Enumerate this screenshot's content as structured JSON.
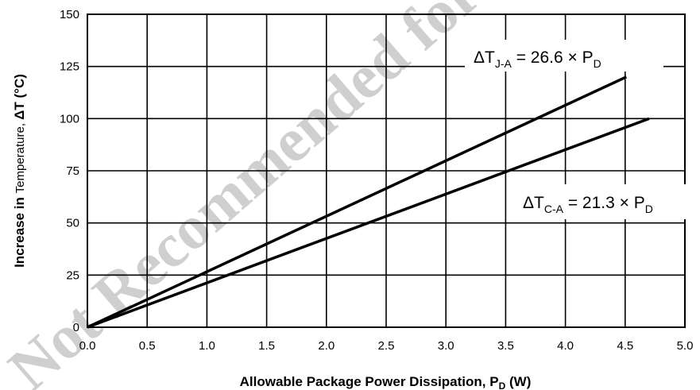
{
  "chart_data": {
    "type": "line",
    "xlabel": {
      "text": "Allowable Package Power Dissipation, P",
      "sub": "D",
      "unit": " (W)"
    },
    "ylabel": {
      "part1": "Increase in ",
      "part2": "Temperature,  ",
      "part3": "ΔT (°C)"
    },
    "xlim": [
      0,
      5
    ],
    "ylim": [
      0,
      150
    ],
    "x_ticks": [
      "0.0",
      "0.5",
      "1.0",
      "1.5",
      "2.0",
      "2.5",
      "3.0",
      "3.5",
      "4.0",
      "4.5",
      "5.0"
    ],
    "y_ticks": [
      "0",
      "25",
      "50",
      "75",
      "100",
      "125",
      "150"
    ],
    "grid": true,
    "series": [
      {
        "name": "ΔT J-A = 26.6 × PD",
        "label": {
          "delta": "ΔT",
          "sub1": "J-A",
          "eq": " = 26.6 × P",
          "sub2": "D"
        },
        "slope": 26.6,
        "x": [
          0,
          4.51
        ],
        "y": [
          0,
          120
        ]
      },
      {
        "name": "ΔT C-A = 21.3 × PD",
        "label": {
          "delta": "ΔT",
          "sub1": "C-A",
          "eq": " = 21.3 × P",
          "sub2": "D"
        },
        "slope": 21.3,
        "x": [
          0,
          4.7
        ],
        "y": [
          0,
          100
        ]
      }
    ],
    "line_color": "#000000",
    "grid_color": "#000000"
  },
  "watermark": "Not Recommended for New"
}
